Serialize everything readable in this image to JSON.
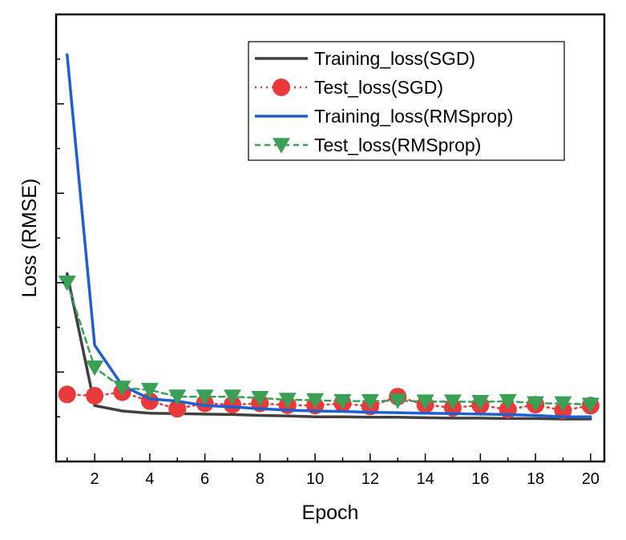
{
  "chart_data": {
    "type": "line",
    "title": "",
    "xlabel": "Epoch",
    "ylabel": "Loss (RMSE)",
    "xlim": [
      0.6,
      20.5
    ],
    "ylim": [
      0,
      1
    ],
    "xticks": [
      2,
      4,
      6,
      8,
      10,
      12,
      14,
      16,
      18,
      20
    ],
    "yticks_visible_labels": false,
    "legend_position": "top-right",
    "x": [
      1,
      2,
      3,
      4,
      5,
      6,
      7,
      8,
      9,
      10,
      11,
      12,
      13,
      14,
      15,
      16,
      17,
      18,
      19,
      20
    ],
    "series": [
      {
        "name": "Training_loss(SGD)",
        "color": "#404040",
        "marker": "none",
        "line_style": "solid",
        "values": [
          0.42,
          0.125,
          0.113,
          0.108,
          0.107,
          0.106,
          0.105,
          0.103,
          0.102,
          0.1,
          0.1,
          0.099,
          0.099,
          0.098,
          0.097,
          0.097,
          0.096,
          0.096,
          0.095,
          0.095
        ]
      },
      {
        "name": "Test_loss(SGD)",
        "color": "#e8393b",
        "marker": "circle",
        "line_style": "dotted",
        "values": [
          0.15,
          0.147,
          0.155,
          0.135,
          0.118,
          0.13,
          0.127,
          0.13,
          0.126,
          0.125,
          0.13,
          0.123,
          0.145,
          0.127,
          0.12,
          0.126,
          0.116,
          0.127,
          0.114,
          0.125
        ]
      },
      {
        "name": "Training_loss(RMSprop)",
        "color": "#1f5fce",
        "marker": "none",
        "line_style": "solid",
        "values": [
          0.91,
          0.26,
          0.17,
          0.14,
          0.135,
          0.125,
          0.122,
          0.118,
          0.115,
          0.113,
          0.112,
          0.11,
          0.109,
          0.108,
          0.107,
          0.106,
          0.105,
          0.103,
          0.1,
          0.1
        ]
      },
      {
        "name": "Test_loss(RMSprop)",
        "color": "#3aa055",
        "marker": "triangle-down",
        "line_style": "dashed",
        "values": [
          0.4,
          0.21,
          0.165,
          0.16,
          0.145,
          0.145,
          0.145,
          0.142,
          0.138,
          0.137,
          0.135,
          0.135,
          0.136,
          0.134,
          0.134,
          0.133,
          0.135,
          0.13,
          0.13,
          0.127
        ]
      }
    ]
  }
}
